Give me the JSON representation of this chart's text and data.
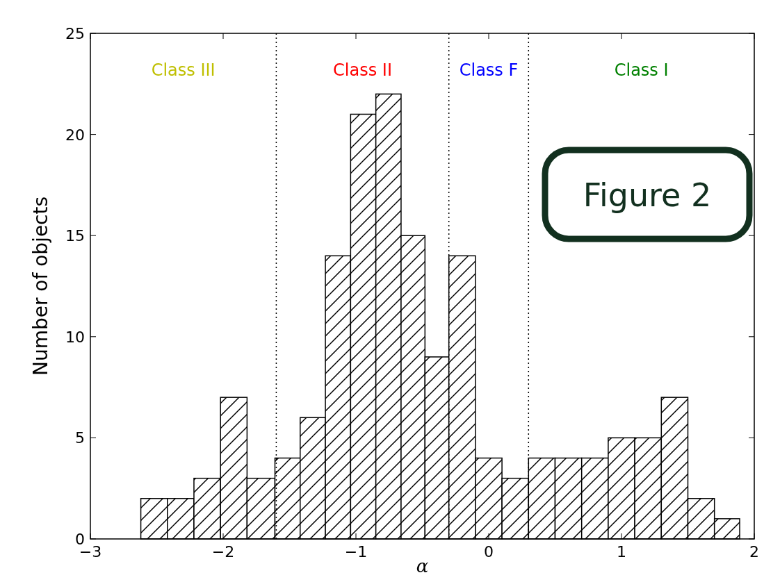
{
  "chart_data": {
    "type": "histogram",
    "xlabel": "α",
    "ylabel": "Number of objects",
    "bins": [
      -2.62,
      -2.42,
      -2.22,
      -2.02,
      -1.82,
      -1.61,
      -1.42,
      -1.23,
      -1.04,
      -0.85,
      -0.66,
      -0.48,
      -0.3,
      -0.1,
      0.1,
      0.3,
      0.5,
      0.7,
      0.9,
      1.1,
      1.3,
      1.5,
      1.7,
      1.89
    ],
    "values": [
      2,
      2,
      3,
      7,
      3,
      4,
      6,
      14,
      21,
      22,
      15,
      9,
      14,
      4,
      3,
      4,
      4,
      4,
      5,
      5,
      7,
      2,
      1
    ],
    "color": "#000000",
    "xlim": [
      -3,
      2
    ],
    "xticks": [
      {
        "value": -3,
        "label": "−3"
      },
      {
        "value": -2,
        "label": "−2"
      },
      {
        "value": -1,
        "label": "−1"
      },
      0,
      1,
      2
    ],
    "ylim": [
      0,
      25
    ],
    "yticks": [
      0,
      5,
      10,
      15,
      20,
      25
    ],
    "grid": false,
    "ref_lines": [
      {
        "axis": "x",
        "value": -1.6,
        "color": "#000000",
        "line_style": "dotted"
      },
      {
        "axis": "x",
        "value": -0.3,
        "color": "#000000",
        "line_style": "dotted"
      },
      {
        "axis": "x",
        "value": 0.3,
        "color": "#000000",
        "line_style": "dotted"
      }
    ],
    "annotations": [
      "Class III",
      "Class II",
      "Class F",
      "Class I",
      "Figure 2"
    ]
  }
}
